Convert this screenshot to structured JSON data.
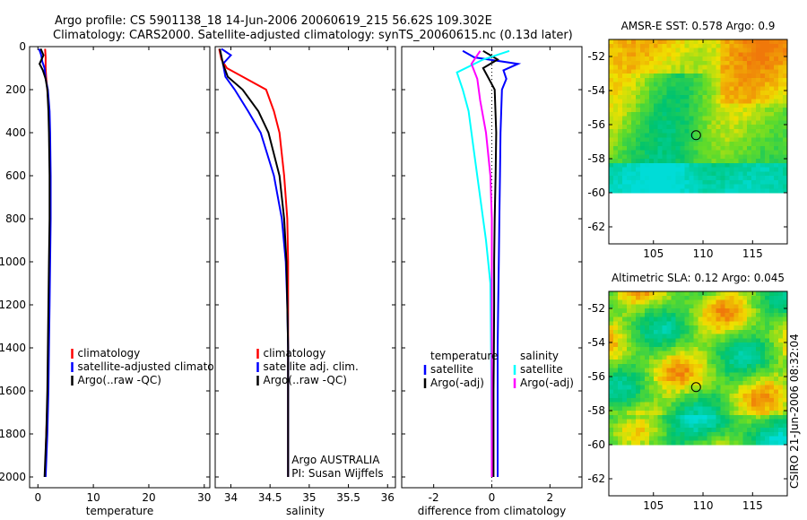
{
  "header": {
    "line1": "Argo profile: CS 5901138_18 14-Jun-2006 20060619_215 56.62S 109.302E",
    "line2": "Climatology: CARS2000. Satellite-adjusted climatology: synTS_20060615.nc (0.13d later)"
  },
  "side_label": "CSIRO 21-Jun-2006 08:32:04",
  "colors": {
    "climatology": "#ff0000",
    "satellite": "#0000ff",
    "argo": "#000000",
    "sal_satellite": "#00ffff",
    "sal_argo": "#ff00ff"
  },
  "chart_data": [
    {
      "type": "line",
      "id": "temperature",
      "xlabel": "temperature",
      "xlim": [
        -1.5,
        31
      ],
      "ylim": [
        0,
        2050
      ],
      "yreverse": true,
      "xticks": [
        0,
        10,
        20,
        30
      ],
      "yticks": [
        0,
        200,
        400,
        600,
        800,
        1000,
        1200,
        1400,
        1600,
        1800,
        2000
      ],
      "legend": {
        "placement": "lower-right",
        "entries": [
          "climatology",
          "satellite-adjusted climatology",
          "Argo(..raw -QC)"
        ]
      },
      "series": [
        {
          "name": "climatology",
          "color": "#ff0000",
          "points": [
            [
              1.3,
              10
            ],
            [
              1.4,
              50
            ],
            [
              1.4,
              100
            ],
            [
              1.5,
              150
            ],
            [
              1.7,
              200
            ],
            [
              2.0,
              300
            ],
            [
              2.1,
              400
            ],
            [
              2.2,
              600
            ],
            [
              2.2,
              800
            ],
            [
              2.1,
              1000
            ],
            [
              2.0,
              1200
            ],
            [
              1.9,
              1400
            ],
            [
              1.8,
              1600
            ],
            [
              1.5,
              1800
            ],
            [
              1.3,
              2000
            ]
          ]
        },
        {
          "name": "satellite-adjusted climatology",
          "color": "#0000ff",
          "points": [
            [
              0.2,
              10
            ],
            [
              0.6,
              40
            ],
            [
              0.8,
              70
            ],
            [
              1.2,
              100
            ],
            [
              1.4,
              150
            ],
            [
              1.8,
              200
            ],
            [
              2.1,
              300
            ],
            [
              2.2,
              400
            ],
            [
              2.3,
              600
            ],
            [
              2.3,
              800
            ],
            [
              2.2,
              1000
            ],
            [
              2.1,
              1200
            ],
            [
              2.0,
              1400
            ],
            [
              1.9,
              1600
            ],
            [
              1.7,
              1800
            ],
            [
              1.4,
              2000
            ]
          ]
        },
        {
          "name": "Argo(..raw -QC)",
          "color": "#000000",
          "points": [
            [
              0.5,
              10
            ],
            [
              1.0,
              40
            ],
            [
              0.3,
              80
            ],
            [
              0.9,
              110
            ],
            [
              1.4,
              150
            ],
            [
              1.7,
              200
            ],
            [
              1.9,
              300
            ],
            [
              2.0,
              400
            ],
            [
              2.1,
              600
            ],
            [
              2.1,
              800
            ],
            [
              2.0,
              1000
            ],
            [
              1.9,
              1200
            ],
            [
              1.8,
              1400
            ],
            [
              1.7,
              1600
            ],
            [
              1.5,
              1800
            ],
            [
              1.2,
              2000
            ]
          ]
        }
      ]
    },
    {
      "type": "line",
      "id": "salinity",
      "xlabel": "salinity",
      "xlim": [
        33.8,
        36.1
      ],
      "ylim": [
        0,
        2050
      ],
      "yreverse": true,
      "xticks": [
        34,
        34.5,
        35,
        35.5,
        36
      ],
      "xticklabels": [
        "34",
        "34.5",
        "35",
        "35.5",
        "36"
      ],
      "legend": {
        "placement": "lower-right",
        "entries": [
          "climatology",
          "satellite adj. clim.",
          "Argo(..raw -QC)"
        ]
      },
      "annotations": [
        "Argo AUSTRALIA",
        "PI: Susan Wijffels"
      ],
      "series": [
        {
          "name": "climatology",
          "color": "#ff0000",
          "points": [
            [
              33.85,
              10
            ],
            [
              33.88,
              60
            ],
            [
              33.95,
              100
            ],
            [
              34.2,
              150
            ],
            [
              34.45,
              200
            ],
            [
              34.55,
              300
            ],
            [
              34.62,
              400
            ],
            [
              34.68,
              600
            ],
            [
              34.72,
              800
            ],
            [
              34.73,
              1000
            ],
            [
              34.73,
              1200
            ],
            [
              34.73,
              1400
            ],
            [
              34.73,
              1600
            ],
            [
              34.73,
              1800
            ],
            [
              34.73,
              2000
            ]
          ]
        },
        {
          "name": "satellite adj. clim.",
          "color": "#0000ff",
          "points": [
            [
              33.88,
              10
            ],
            [
              34.0,
              40
            ],
            [
              33.9,
              80
            ],
            [
              33.93,
              140
            ],
            [
              34.05,
              200
            ],
            [
              34.22,
              300
            ],
            [
              34.38,
              400
            ],
            [
              34.55,
              600
            ],
            [
              34.65,
              800
            ],
            [
              34.7,
              1000
            ],
            [
              34.72,
              1200
            ],
            [
              34.73,
              1400
            ],
            [
              34.73,
              1600
            ],
            [
              34.73,
              1800
            ],
            [
              34.73,
              2000
            ]
          ]
        },
        {
          "name": "Argo(..raw -QC)",
          "color": "#000000",
          "points": [
            [
              33.86,
              10
            ],
            [
              33.9,
              80
            ],
            [
              33.96,
              140
            ],
            [
              34.15,
              200
            ],
            [
              34.35,
              300
            ],
            [
              34.48,
              400
            ],
            [
              34.62,
              600
            ],
            [
              34.68,
              800
            ],
            [
              34.71,
              1000
            ],
            [
              34.72,
              1200
            ],
            [
              34.73,
              1400
            ],
            [
              34.73,
              1600
            ],
            [
              34.73,
              1800
            ],
            [
              34.73,
              2000
            ]
          ]
        }
      ]
    },
    {
      "type": "line",
      "id": "difference",
      "xlabel": "difference from climatology",
      "xlim": [
        -3.1,
        3.1
      ],
      "ylim": [
        0,
        2050
      ],
      "yreverse": true,
      "xticks": [
        -2,
        0,
        2
      ],
      "legend": {
        "placement": "lower-right",
        "groups": [
          {
            "title": "temperature",
            "entries": [
              "satellite",
              "Argo(-adj)"
            ]
          },
          {
            "title": "salinity",
            "entries": [
              "satellite",
              "Argo(-adj)"
            ]
          }
        ]
      },
      "series": [
        {
          "name": "temperature satellite",
          "color": "#0000ff",
          "points": [
            [
              -1.0,
              20
            ],
            [
              -0.6,
              50
            ],
            [
              0.9,
              80
            ],
            [
              0.4,
              110
            ],
            [
              0.5,
              150
            ],
            [
              0.35,
              200
            ],
            [
              0.3,
              400
            ],
            [
              0.28,
              600
            ],
            [
              0.26,
              800
            ],
            [
              0.24,
              1000
            ],
            [
              0.22,
              1200
            ],
            [
              0.2,
              1400
            ],
            [
              0.2,
              1600
            ],
            [
              0.2,
              1800
            ],
            [
              0.2,
              2000
            ]
          ]
        },
        {
          "name": "temperature Argo(-adj)",
          "color": "#000000",
          "points": [
            [
              -0.3,
              20
            ],
            [
              0.2,
              60
            ],
            [
              -0.3,
              100
            ],
            [
              -0.1,
              150
            ],
            [
              0.1,
              200
            ],
            [
              0.15,
              400
            ],
            [
              0.13,
              600
            ],
            [
              0.1,
              800
            ],
            [
              0.08,
              1000
            ],
            [
              0.08,
              1200
            ],
            [
              0.07,
              1400
            ],
            [
              0.06,
              1600
            ],
            [
              0.06,
              1800
            ],
            [
              0.06,
              2000
            ]
          ]
        },
        {
          "name": "salinity satellite",
          "color": "#00ffff",
          "points": [
            [
              0.6,
              20
            ],
            [
              -0.3,
              60
            ],
            [
              -1.2,
              120
            ],
            [
              -1.0,
              200
            ],
            [
              -0.8,
              300
            ],
            [
              -0.6,
              500
            ],
            [
              -0.4,
              700
            ],
            [
              -0.2,
              900
            ],
            [
              -0.05,
              1100
            ],
            [
              -0.02,
              1500
            ],
            [
              0.0,
              2000
            ]
          ]
        },
        {
          "name": "salinity Argo(-adj)",
          "color": "#ff00ff",
          "points": [
            [
              -0.4,
              20
            ],
            [
              -0.7,
              80
            ],
            [
              -0.5,
              150
            ],
            [
              -0.4,
              250
            ],
            [
              -0.2,
              400
            ],
            [
              -0.05,
              600
            ],
            [
              0.0,
              800
            ],
            [
              0.0,
              1000
            ],
            [
              0.0,
              1200
            ],
            [
              0.0,
              1500
            ],
            [
              0.0,
              2000
            ]
          ]
        }
      ]
    },
    {
      "type": "heatmap",
      "id": "sst-map",
      "title": "AMSR-E SST: 0.578 Argo: 0.9",
      "xlim": [
        100.5,
        118.5
      ],
      "ylim": [
        -63,
        -51
      ],
      "xticks": [
        105,
        110,
        115
      ],
      "yticks": [
        -52,
        -54,
        -56,
        -58,
        -60,
        -62
      ],
      "data_ylim": [
        -60,
        -51
      ],
      "marker": {
        "lon": 109.3,
        "lat": -56.62
      }
    },
    {
      "type": "heatmap",
      "id": "sla-map",
      "title": "Altimetric SLA: 0.12 Argo: 0.045",
      "xlim": [
        100.5,
        118.5
      ],
      "ylim": [
        -63,
        -51
      ],
      "xticks": [
        105,
        110,
        115
      ],
      "yticks": [
        -52,
        -54,
        -56,
        -58,
        -60,
        -62
      ],
      "data_ylim": [
        -60,
        -51
      ],
      "marker": {
        "lon": 109.3,
        "lat": -56.62
      }
    }
  ]
}
